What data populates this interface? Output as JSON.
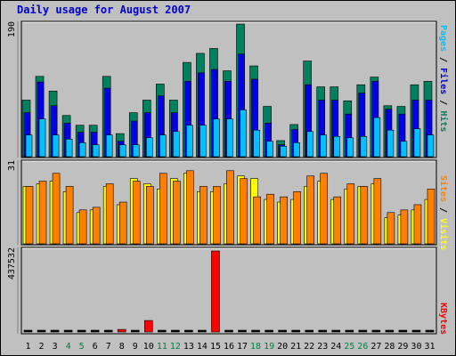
{
  "title": "Daily usage for August 2007",
  "colors": {
    "hits": "#00805c",
    "files": "#0000e6",
    "pages": "#00c0ff",
    "visits": "#ffff00",
    "sites": "#ff8000",
    "kbytes": "#ff0000",
    "title": "#0000cc",
    "weekend_tick": "#008040"
  },
  "legend": {
    "top": [
      {
        "text": "Pages",
        "color": "#00c0ff"
      },
      {
        "text": " / ",
        "color": "#000000"
      },
      {
        "text": "Files",
        "color": "#0000e6"
      },
      {
        "text": " / ",
        "color": "#000000"
      },
      {
        "text": "Hits",
        "color": "#00805c"
      }
    ],
    "middle": [
      {
        "text": "Sites",
        "color": "#ff8000"
      },
      {
        "text": " / ",
        "color": "#000000"
      },
      {
        "text": "Visits",
        "color": "#ffff00"
      }
    ],
    "bottom": [
      {
        "text": "KBytes",
        "color": "#ff0000"
      }
    ]
  },
  "chart_data": [
    {
      "type": "bar",
      "panel": "hits-files-pages",
      "ylabel_max": "190",
      "ylim": [
        0,
        190
      ],
      "categories": [
        "1",
        "2",
        "3",
        "4",
        "5",
        "6",
        "7",
        "8",
        "9",
        "10",
        "11",
        "12",
        "13",
        "14",
        "15",
        "16",
        "17",
        "18",
        "19",
        "20",
        "21",
        "22",
        "23",
        "24",
        "25",
        "26",
        "27",
        "28",
        "29",
        "30",
        "31"
      ],
      "series": [
        {
          "name": "Hits",
          "values": [
            81,
            115,
            94,
            59,
            45,
            45,
            115,
            33,
            63,
            81,
            104,
            81,
            135,
            148,
            155,
            123,
            190,
            130,
            72,
            23,
            46,
            137,
            100,
            100,
            80,
            103,
            114,
            73,
            72,
            103,
            108
          ]
        },
        {
          "name": "Files",
          "values": [
            63,
            107,
            73,
            48,
            35,
            35,
            98,
            22,
            51,
            63,
            87,
            63,
            108,
            120,
            125,
            108,
            147,
            111,
            48,
            17,
            39,
            103,
            81,
            81,
            61,
            91,
            108,
            68,
            61,
            81,
            81
          ]
        },
        {
          "name": "Pages",
          "values": [
            31,
            54,
            31,
            25,
            20,
            17,
            31,
            17,
            17,
            27,
            31,
            36,
            45,
            45,
            54,
            54,
            67,
            38,
            22,
            15,
            20,
            36,
            31,
            29,
            27,
            29,
            56,
            38,
            22,
            40,
            31
          ]
        }
      ]
    },
    {
      "type": "bar",
      "panel": "visits-sites",
      "ylabel_max": "31",
      "ylim": [
        0,
        31
      ],
      "categories": [
        "1",
        "2",
        "3",
        "4",
        "5",
        "6",
        "7",
        "8",
        "9",
        "10",
        "11",
        "12",
        "13",
        "14",
        "15",
        "16",
        "17",
        "18",
        "19",
        "20",
        "21",
        "22",
        "23",
        "24",
        "25",
        "26",
        "27",
        "28",
        "29",
        "30",
        "31"
      ],
      "series": [
        {
          "name": "Visits",
          "values": [
            22,
            23,
            24,
            20,
            12,
            13,
            22,
            15,
            25,
            23,
            21,
            25,
            27,
            20,
            20,
            23,
            26,
            25,
            17,
            16,
            17,
            22,
            24,
            17,
            21,
            22,
            23,
            10,
            11,
            13,
            17
          ]
        },
        {
          "name": "Sites",
          "values": [
            22,
            24,
            27,
            22,
            13,
            14,
            23,
            16,
            24,
            22,
            27,
            24,
            28,
            22,
            22,
            28,
            25,
            18,
            19,
            18,
            20,
            26,
            27,
            18,
            23,
            22,
            25,
            12,
            13,
            15,
            21
          ]
        }
      ]
    },
    {
      "type": "bar",
      "panel": "kbytes",
      "ylabel_max": "437532",
      "ylim": [
        0,
        437532
      ],
      "categories": [
        "1",
        "2",
        "3",
        "4",
        "5",
        "6",
        "7",
        "8",
        "9",
        "10",
        "11",
        "12",
        "13",
        "14",
        "15",
        "16",
        "17",
        "18",
        "19",
        "20",
        "21",
        "22",
        "23",
        "24",
        "25",
        "26",
        "27",
        "28",
        "29",
        "30",
        "31"
      ],
      "series": [
        {
          "name": "KBytes",
          "values": [
            0,
            0,
            0,
            0,
            0,
            0,
            0,
            14000,
            0,
            62000,
            0,
            0,
            0,
            0,
            437532,
            0,
            0,
            0,
            0,
            0,
            0,
            0,
            0,
            0,
            0,
            0,
            0,
            0,
            0,
            0,
            0
          ]
        }
      ]
    }
  ],
  "weekend_days": [
    "4",
    "5",
    "11",
    "12",
    "18",
    "19",
    "25",
    "26"
  ]
}
